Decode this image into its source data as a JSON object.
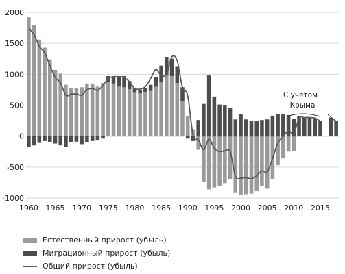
{
  "chart_data": {
    "type": "bar",
    "x_ticks": [
      1960,
      1965,
      1970,
      1975,
      1980,
      1985,
      1990,
      1995,
      2000,
      2005,
      2010,
      2015
    ],
    "y_ticks": [
      -1000,
      -500,
      0,
      500,
      1000,
      1500,
      2000
    ],
    "ylim": [
      -1000,
      2000
    ],
    "xlim": [
      1959.5,
      2018.5
    ],
    "annotation": "С учетом Крыма",
    "legend_position": "bottom",
    "colors": {
      "natural": "#9a9a9a",
      "migration": "#4d4d4d",
      "total": "#5a5a5a"
    },
    "series": [
      {
        "name": "Естественный прирост (убыль)",
        "kind": "bar",
        "x": [
          1960,
          1961,
          1962,
          1963,
          1964,
          1965,
          1966,
          1967,
          1968,
          1969,
          1970,
          1971,
          1972,
          1973,
          1974,
          1975,
          1976,
          1977,
          1978,
          1979,
          1980,
          1981,
          1982,
          1983,
          1984,
          1985,
          1986,
          1987,
          1988,
          1989,
          1990,
          1991,
          1992,
          1993,
          1994,
          1995,
          1996,
          1997,
          1998,
          1999,
          2000,
          2001,
          2002,
          2003,
          2004,
          2005,
          2006,
          2007,
          2008,
          2009,
          2010,
          2011,
          2012,
          2013,
          2014,
          2015,
          2017,
          2018
        ],
        "values": [
          1920,
          1790,
          1560,
          1430,
          1240,
          1070,
          1010,
          830,
          780,
          770,
          790,
          850,
          850,
          800,
          860,
          880,
          850,
          800,
          790,
          760,
          700,
          690,
          710,
          730,
          800,
          880,
          990,
          970,
          860,
          570,
          330,
          100,
          -220,
          -740,
          -860,
          -830,
          -800,
          -760,
          -700,
          -920,
          -950,
          -940,
          -930,
          -890,
          -810,
          -850,
          -690,
          -470,
          -360,
          -250,
          -240,
          0,
          0,
          0,
          0,
          0,
          0,
          0
        ]
      },
      {
        "name": "Миграционный прирост (убыль)",
        "kind": "bar",
        "x": [
          1960,
          1961,
          1962,
          1963,
          1964,
          1965,
          1966,
          1967,
          1968,
          1969,
          1970,
          1971,
          1972,
          1973,
          1974,
          1975,
          1976,
          1977,
          1978,
          1979,
          1980,
          1981,
          1982,
          1983,
          1984,
          1985,
          1986,
          1987,
          1988,
          1989,
          1990,
          1991,
          1992,
          1993,
          1994,
          1995,
          1996,
          1997,
          1998,
          1999,
          2000,
          2001,
          2002,
          2003,
          2004,
          2005,
          2006,
          2007,
          2008,
          2009,
          2010,
          2011,
          2012,
          2013,
          2014,
          2015,
          2017,
          2018
        ],
        "values": [
          -180,
          -150,
          -110,
          -80,
          -100,
          -120,
          -150,
          -170,
          -100,
          -90,
          -130,
          -100,
          -80,
          -60,
          -40,
          90,
          120,
          170,
          180,
          130,
          70,
          60,
          70,
          100,
          160,
          260,
          290,
          280,
          260,
          220,
          -40,
          -80,
          260,
          520,
          980,
          640,
          510,
          500,
          460,
          270,
          350,
          270,
          240,
          250,
          260,
          270,
          330,
          360,
          350,
          340,
          280,
          320,
          300,
          300,
          290,
          240,
          300,
          240
        ]
      },
      {
        "name": "Общий прирост (убыль)",
        "kind": "line",
        "x": [
          1960,
          1961,
          1962,
          1963,
          1964,
          1965,
          1966,
          1967,
          1968,
          1969,
          1970,
          1971,
          1972,
          1973,
          1974,
          1975,
          1976,
          1977,
          1978,
          1979,
          1980,
          1981,
          1982,
          1983,
          1984,
          1985,
          1986,
          1987,
          1988,
          1989,
          1990,
          1991,
          1992,
          1993,
          1994,
          1995,
          1996,
          1997,
          1998,
          1999,
          2000,
          2001,
          2002,
          2003,
          2004,
          2005,
          2006,
          2007,
          2008,
          2009,
          2010,
          2011,
          2012,
          2013,
          2014,
          2015,
          2017,
          2018
        ],
        "values": [
          1740,
          1640,
          1450,
          1350,
          1140,
          950,
          860,
          660,
          680,
          680,
          660,
          750,
          770,
          740,
          820,
          930,
          960,
          960,
          950,
          880,
          770,
          760,
          800,
          930,
          1080,
          980,
          1000,
          1280,
          1220,
          790,
          650,
          10,
          -60,
          -220,
          -50,
          -200,
          -250,
          -240,
          -250,
          -650,
          -680,
          -670,
          -690,
          -640,
          -560,
          -580,
          -360,
          -110,
          -10,
          90,
          40,
          290,
          300,
          300,
          290,
          240,
          300,
          240
        ]
      }
    ]
  },
  "legend": {
    "natural": "Естественный прирост (убыль)",
    "migration": "Миграционный прирост (убыль)",
    "total": "Общий прирост (убыль)"
  }
}
